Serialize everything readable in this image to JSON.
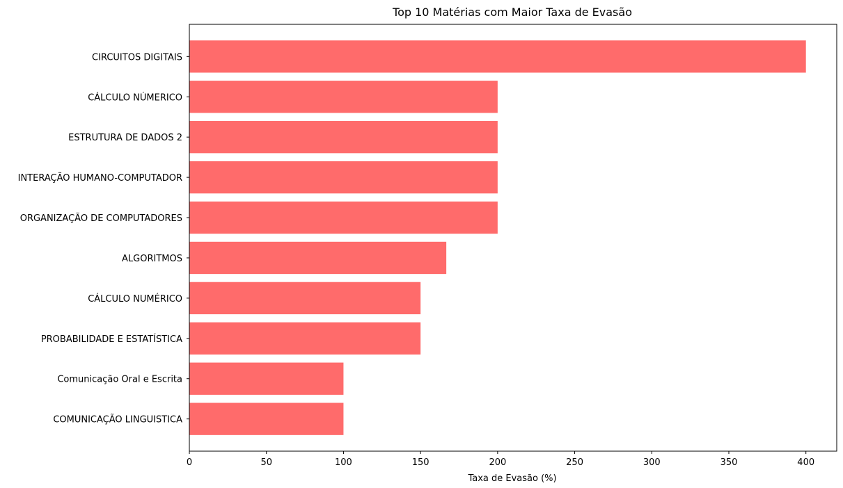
{
  "chart_data": {
    "type": "bar",
    "orientation": "horizontal",
    "title": "Top 10 Matérias com Maior Taxa de Evasão",
    "xlabel": "Taxa de Evasão (%)",
    "ylabel": "",
    "categories": [
      "CIRCUITOS DIGITAIS",
      "CÁLCULO NÚMERICO ",
      "ESTRUTURA DE DADOS 2",
      "INTERAÇÃO HUMANO-COMPUTADOR",
      "ORGANIZAÇÃO DE COMPUTADORES",
      "ALGORITMOS",
      "CÁLCULO NUMÉRICO",
      "PROBABILIDADE E ESTATÍSTICA",
      "Comunicação Oral e Escrita",
      "COMUNICAÇÃO LINGUISTICA"
    ],
    "values": [
      400,
      200,
      200,
      200,
      200,
      166.7,
      150,
      150,
      100,
      100
    ],
    "xlim": [
      0,
      420
    ],
    "xticks": [
      0,
      50,
      100,
      150,
      200,
      250,
      300,
      350,
      400
    ],
    "grid": false,
    "bar_color": "#ff6b6b"
  }
}
